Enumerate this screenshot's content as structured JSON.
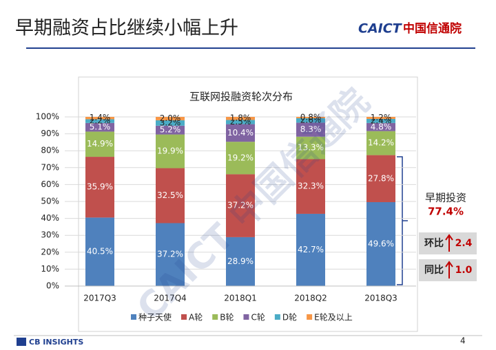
{
  "slide": {
    "title": "早期融资占比继续小幅上升",
    "logo_en": "CAICT",
    "logo_cn": "中国信通院",
    "footer_logo": "CB INSIGHTS",
    "page": "4",
    "watermark": "CAICT 中国信通院"
  },
  "chart_data": {
    "type": "stacked_bar",
    "title": "互联网投融资轮次分布",
    "categories": [
      "2017Q3",
      "2017Q4",
      "2018Q1",
      "2018Q2",
      "2018Q3"
    ],
    "series": [
      {
        "name": "种子天使",
        "color": "#4f81bd",
        "values": [
          40.5,
          37.2,
          28.9,
          42.7,
          49.6
        ],
        "value_labels": [
          "40.5%",
          "37.2%",
          "28.9%",
          "42.7%",
          "49.6%"
        ]
      },
      {
        "name": "A轮",
        "color": "#c0504d",
        "values": [
          35.9,
          32.5,
          37.2,
          32.3,
          27.8
        ],
        "value_labels": [
          "35.9%",
          "32.5%",
          "37.2%",
          "32.3%",
          "27.8%"
        ]
      },
      {
        "name": "B轮",
        "color": "#9bbb59",
        "values": [
          14.9,
          19.9,
          19.2,
          13.3,
          14.2
        ],
        "value_labels": [
          "14.9%",
          "19.9%",
          "19.2%",
          "13.3%",
          "14.2%"
        ]
      },
      {
        "name": "C轮",
        "color": "#8064a2",
        "values": [
          5.1,
          5.2,
          10.4,
          8.3,
          4.8
        ],
        "value_labels": [
          "5.1%",
          "5.2%",
          "10.4%",
          "8.3%",
          "4.8%"
        ]
      },
      {
        "name": "D轮",
        "color": "#4bacc6",
        "values": [
          2.2,
          3.2,
          2.5,
          2.6,
          2.4
        ],
        "value_labels": [
          "2.2%",
          "3.2%",
          "2.5%",
          "2.6%",
          "2.4%"
        ]
      },
      {
        "name": "E轮及以上",
        "color": "#f79646",
        "values": [
          1.4,
          2.0,
          1.8,
          0.8,
          1.2
        ],
        "value_labels": [
          "1.4%",
          "2.0%",
          "1.8%",
          "0.8%",
          "1.2%"
        ]
      }
    ],
    "ylim": [
      0,
      100
    ],
    "yticks": [
      {
        "value": 0,
        "label": "0%"
      },
      {
        "value": 10,
        "label": "10%"
      },
      {
        "value": 20,
        "label": "20%"
      },
      {
        "value": 30,
        "label": "30%"
      },
      {
        "value": 40,
        "label": "40%"
      },
      {
        "value": 50,
        "label": "50%"
      },
      {
        "value": 60,
        "label": "60%"
      },
      {
        "value": 70,
        "label": "70%"
      },
      {
        "value": 80,
        "label": "80%"
      },
      {
        "value": 90,
        "label": "90%"
      },
      {
        "value": 100,
        "label": "100%"
      }
    ],
    "grid": true,
    "legend": "bottom",
    "annotations": {
      "early_label": "早期投资",
      "early_value": "77.4%",
      "qoq_label": "环比",
      "qoq_value": "2.4",
      "yoy_label": "同比",
      "yoy_value": "1.0"
    }
  }
}
